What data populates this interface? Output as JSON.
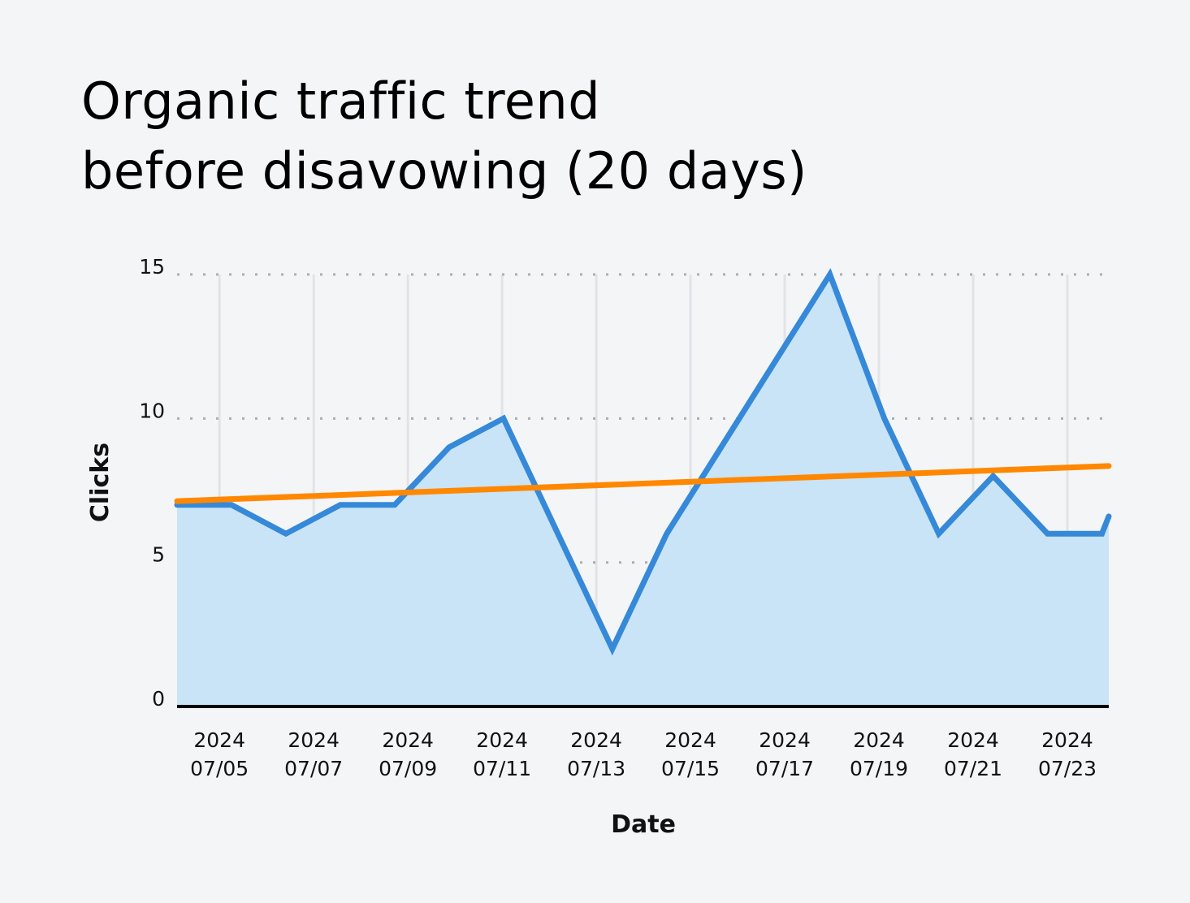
{
  "chart_data": {
    "type": "area",
    "title_lines": [
      "Organic traffic trend",
      "before disavowing (20 days)"
    ],
    "xlabel": "Date",
    "ylabel": "Clicks",
    "xlim": [
      "2024-07-04T02:24",
      "2024-07-23T21:07"
    ],
    "ylim": [
      0,
      15
    ],
    "yticks": [
      0,
      5,
      10,
      15
    ],
    "xticks": [
      {
        "date": "2024-07-05",
        "label": [
          "2024",
          "07/05"
        ]
      },
      {
        "date": "2024-07-07",
        "label": [
          "2024",
          "07/07"
        ]
      },
      {
        "date": "2024-07-09",
        "label": [
          "2024",
          "07/09"
        ]
      },
      {
        "date": "2024-07-11",
        "label": [
          "2024",
          "07/11"
        ]
      },
      {
        "date": "2024-07-13",
        "label": [
          "2024",
          "07/13"
        ]
      },
      {
        "date": "2024-07-15",
        "label": [
          "2024",
          "07/15"
        ]
      },
      {
        "date": "2024-07-17",
        "label": [
          "2024",
          "07/17"
        ]
      },
      {
        "date": "2024-07-19",
        "label": [
          "2024",
          "07/19"
        ]
      },
      {
        "date": "2024-07-21",
        "label": [
          "2024",
          "07/21"
        ]
      },
      {
        "date": "2024-07-23",
        "label": [
          "2024",
          "07/23"
        ]
      }
    ],
    "grid": {
      "horizontal": "dotted",
      "vertical": "solid-light"
    },
    "series": [
      {
        "color": "#3589d8",
        "fill": "#c8e4f6",
        "points": [
          {
            "x": "2024-07-04T02:24",
            "y": 7
          },
          {
            "x": "2024-07-05T06:07",
            "y": 7
          },
          {
            "x": "2024-07-06T09:50",
            "y": 6
          },
          {
            "x": "2024-07-07T13:34",
            "y": 7
          },
          {
            "x": "2024-07-08T17:17",
            "y": 7
          },
          {
            "x": "2024-07-09T21:00",
            "y": 9
          },
          {
            "x": "2024-07-11T00:43",
            "y": 10
          },
          {
            "x": "2024-07-12T04:26",
            "y": 6
          },
          {
            "x": "2024-07-13T08:10",
            "y": 2
          },
          {
            "x": "2024-07-14T11:53",
            "y": 6
          },
          {
            "x": "2024-07-15T15:36",
            "y": 9
          },
          {
            "x": "2024-07-16T19:19",
            "y": 12
          },
          {
            "x": "2024-07-17T23:02",
            "y": 15
          },
          {
            "x": "2024-07-19T02:46",
            "y": 10
          },
          {
            "x": "2024-07-20T06:29",
            "y": 6
          },
          {
            "x": "2024-07-21T10:12",
            "y": 8
          },
          {
            "x": "2024-07-22T13:55",
            "y": 6
          },
          {
            "x": "2024-07-23T17:38",
            "y": 6
          },
          {
            "x": "2024-07-23T21:07",
            "y": 6.6
          }
        ]
      },
      {
        "type": "trend-line",
        "color": "#ff8800",
        "points": [
          {
            "x": "2024-07-04T02:24",
            "y": 7.13
          },
          {
            "x": "2024-07-23T21:07",
            "y": 8.35
          }
        ]
      }
    ]
  }
}
